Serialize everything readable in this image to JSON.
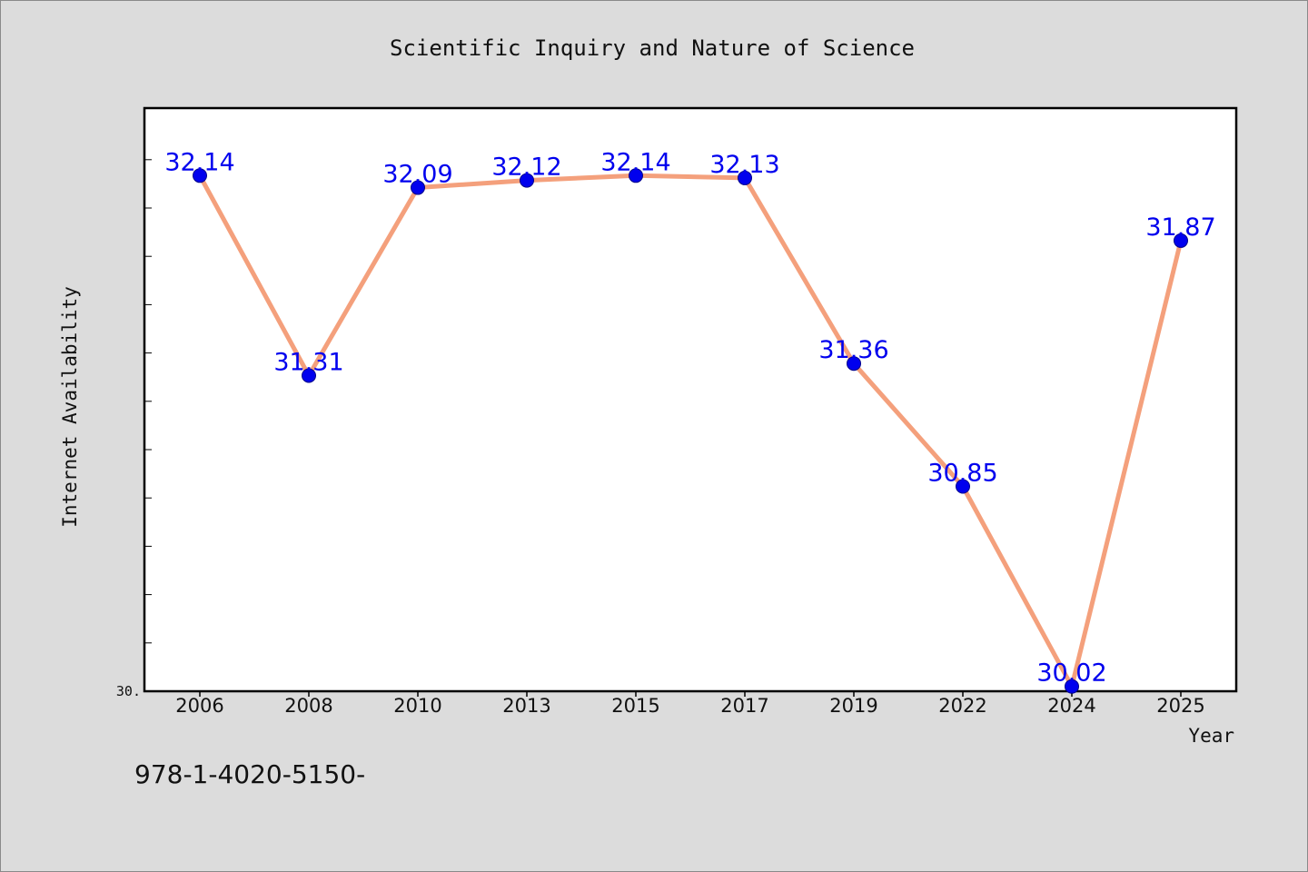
{
  "chart_data": {
    "type": "line",
    "title": "Scientific Inquiry and Nature of Science",
    "xlabel": "Year",
    "ylabel": "Internet Availability",
    "categories": [
      "2006",
      "2008",
      "2010",
      "2013",
      "2015",
      "2017",
      "2019",
      "2022",
      "2024",
      "2025"
    ],
    "series": [
      {
        "values": [
          32.14,
          31.31,
          32.09,
          32.12,
          32.14,
          32.13,
          31.36,
          30.85,
          30.02,
          31.87
        ]
      }
    ],
    "data_labels": [
      "32.14",
      "31.31",
      "32.09",
      "32.12",
      "32.14",
      "32.13",
      "31.36",
      "30.85",
      "30.02",
      "31.87"
    ],
    "y_tick_label": "30.",
    "ylim": [
      30.0,
      32.42
    ],
    "grid": false,
    "legend": "none",
    "annotation": "978-1-4020-5150-",
    "colors": {
      "line": "#f4a07c",
      "marker": "#0000ee",
      "label": "#0000ee",
      "background": "#dcdcdc",
      "plot_background": "#ffffff"
    }
  }
}
